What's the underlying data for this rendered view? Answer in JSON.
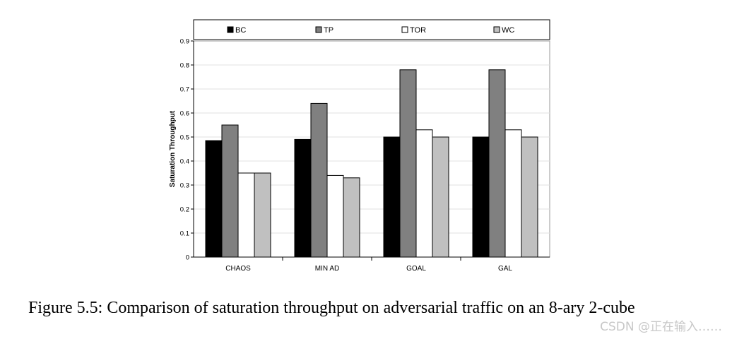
{
  "chart_data": {
    "type": "bar",
    "categories": [
      "CHAOS",
      "MIN AD",
      "GOAL",
      "GAL"
    ],
    "series": [
      {
        "name": "BC",
        "color": "#000000",
        "values": [
          0.485,
          0.49,
          0.5,
          0.5
        ]
      },
      {
        "name": "TP",
        "color": "#808080",
        "values": [
          0.55,
          0.64,
          0.78,
          0.78
        ]
      },
      {
        "name": "TOR",
        "color": "#ffffff",
        "values": [
          0.35,
          0.34,
          0.53,
          0.53
        ]
      },
      {
        "name": "WC",
        "color": "#c0c0c0",
        "values": [
          0.35,
          0.33,
          0.5,
          0.5
        ]
      }
    ],
    "ylabel": "Saturation Throughput",
    "xlabel": "",
    "ylim": [
      0,
      0.9
    ],
    "yticks": [
      "0",
      "0.1",
      "0.2",
      "0.3",
      "0.4",
      "0.5",
      "0.6",
      "0.7",
      "0.8",
      "0.9"
    ],
    "grid": true,
    "legend_position": "top"
  },
  "caption": "Figure 5.5: Comparison of saturation throughput on adversarial traffic on an 8-ary 2-cube",
  "watermark": "CSDN @正在输入……"
}
